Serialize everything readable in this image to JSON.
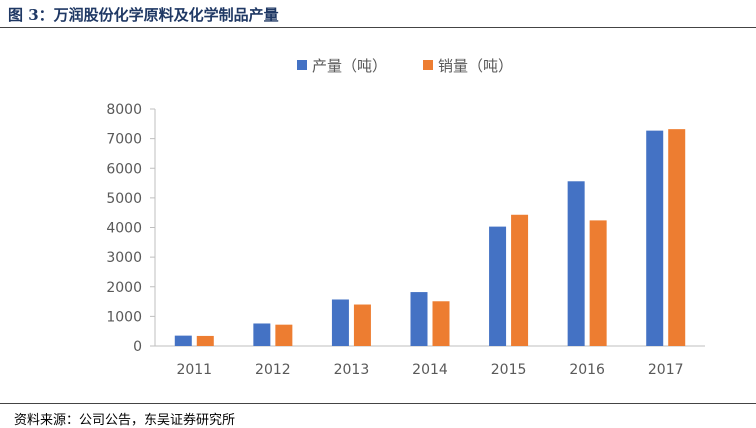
{
  "figure": {
    "title": "图 3：万润股份化学原料及化学制品产量",
    "source": "资料来源：公司公告，东吴证券研究所"
  },
  "colors": {
    "title": "#1f3864",
    "series_production": "#4472c4",
    "series_sales": "#ed7d31",
    "axis": "#bfbfbf",
    "tick_text": "#595959"
  },
  "chart_data": {
    "type": "bar",
    "title": "",
    "xlabel": "",
    "ylabel": "",
    "categories": [
      "2011",
      "2012",
      "2013",
      "2014",
      "2015",
      "2016",
      "2017"
    ],
    "series": [
      {
        "name": "产量（吨）",
        "values": [
          350,
          760,
          1570,
          1820,
          4030,
          5560,
          7270
        ]
      },
      {
        "name": "销量（吨）",
        "values": [
          340,
          720,
          1400,
          1510,
          4430,
          4240,
          7320
        ]
      }
    ],
    "ylim": [
      0,
      8000
    ],
    "yticks": [
      0,
      1000,
      2000,
      3000,
      4000,
      5000,
      6000,
      7000,
      8000
    ],
    "grid": false,
    "legend_position": "top"
  }
}
